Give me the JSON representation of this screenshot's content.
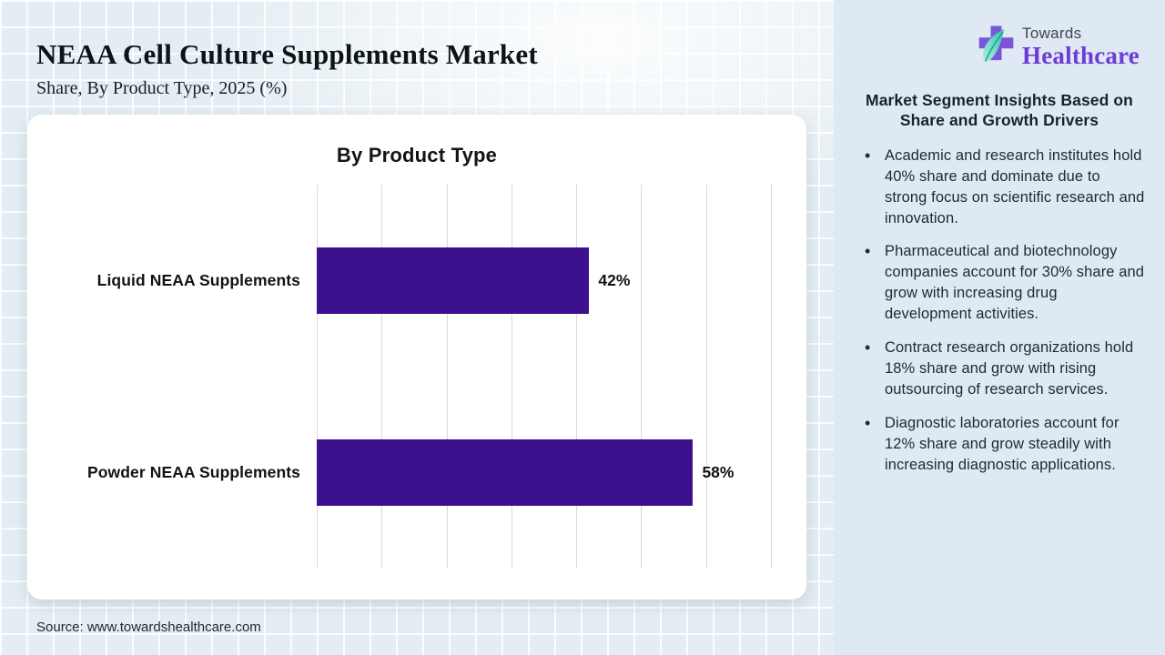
{
  "header": {
    "title": "NEAA Cell Culture Supplements Market",
    "subtitle": "Share, By Product Type, 2025 (%)"
  },
  "logo": {
    "brand_top": "Towards",
    "brand_bottom": "Healthcare",
    "icon": "cross-leaf-icon",
    "cross_color": "#7a55d8",
    "leaf_color_light": "#aef0dd",
    "leaf_color_dark": "#2dc3ac",
    "brand_top_color": "#43474c",
    "brand_bottom_color": "#6d3bd5"
  },
  "chart_data": {
    "type": "bar",
    "orientation": "horizontal",
    "title": "By Product Type",
    "categories": [
      "Liquid NEAA Supplements",
      "Powder NEAA Supplements"
    ],
    "values": [
      42,
      58
    ],
    "value_labels": [
      "42%",
      "58%"
    ],
    "unit": "%",
    "xlim": [
      0,
      70
    ],
    "gridline_interval": 10,
    "grid": true,
    "legend": false,
    "bar_color": "#3d1090"
  },
  "sidebar": {
    "heading": "Market Segment Insights Based on Share and Growth Drivers",
    "background": "#dfe9f3",
    "bullets": [
      "Academic and research institutes hold 40% share and dominate due to strong focus on scientific research and innovation.",
      "Pharmaceutical and biotechnology companies account for 30% share and grow with increasing drug development activities.",
      "Contract research organizations hold 18% share and grow with rising outsourcing of research services.",
      "Diagnostic laboratories account for 12% share and grow steadily with increasing diagnostic applications."
    ]
  },
  "footer": {
    "source": "Source: www.towardshealthcare.com"
  }
}
